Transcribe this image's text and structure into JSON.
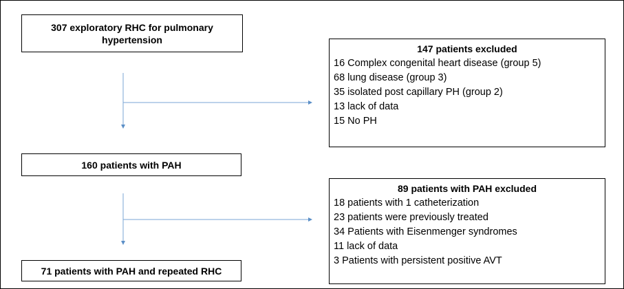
{
  "nodes": [
    {
      "label": "307 exploratory RHC for pulmonary hypertension"
    },
    {
      "label": "160 patients with PAH"
    },
    {
      "label": "71 patients with PAH and repeated RHC"
    }
  ],
  "exclusions": [
    {
      "title": "147 patients excluded",
      "items": [
        "16 Complex congenital heart disease (group 5)",
        "68 lung disease (group 3)",
        "35 isolated post capillary PH (group 2)",
        "13 lack of data",
        "15 No PH"
      ]
    },
    {
      "title": "89 patients with PAH excluded",
      "items": [
        "18 patients with 1 catheterization",
        "23 patients were previously treated",
        "34 Patients with Eisenmenger syndromes",
        "11 lack of data",
        "3 Patients with persistent positive AVT"
      ]
    }
  ]
}
